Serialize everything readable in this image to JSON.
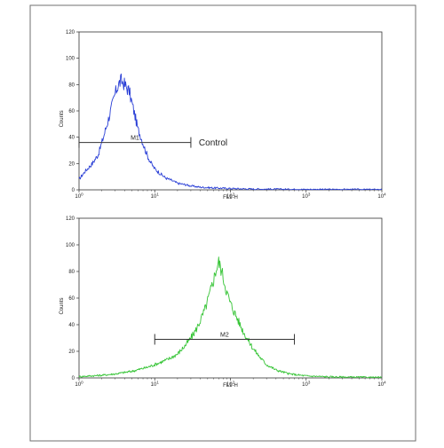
{
  "chart_data": [
    {
      "type": "line",
      "title": "",
      "xlabel": "FL1-H",
      "ylabel": "Counts",
      "x_scale": "log",
      "xlim": [
        1,
        10000
      ],
      "ylim": [
        0,
        120
      ],
      "y_ticks": [
        "0",
        "20",
        "40",
        "60",
        "80",
        "100",
        "120"
      ],
      "x_ticks": [
        {
          "base": "10",
          "exp": "0"
        },
        {
          "base": "10",
          "exp": "1"
        },
        {
          "base": "10",
          "exp": "2"
        },
        {
          "base": "10",
          "exp": "3"
        },
        {
          "base": "10",
          "exp": "4"
        }
      ],
      "color": "#2a3fd6",
      "series": [
        {
          "x": [
            1,
            1.2,
            1.5,
            1.8,
            2.1,
            2.4,
            2.7,
            3.0,
            3.3,
            3.6,
            3.9,
            4.2,
            4.6,
            5.0,
            5.5,
            6.0,
            6.6,
            7.2,
            8.0,
            9.0,
            10,
            12,
            14,
            17,
            20,
            25,
            30,
            40,
            60,
            100,
            200,
            1000,
            10000
          ],
          "y": [
            8,
            14,
            20,
            27,
            40,
            52,
            63,
            73,
            80,
            83,
            81,
            78,
            75,
            66,
            56,
            46,
            40,
            33,
            26,
            20,
            16,
            12,
            9,
            7,
            5,
            4,
            3,
            2,
            1.5,
            1,
            0.6,
            0.3,
            0.2
          ]
        }
      ],
      "gate": {
        "label": "M1",
        "x_start": 1,
        "x_end": 30,
        "y": 36
      },
      "annotation": "Control"
    },
    {
      "type": "line",
      "title": "",
      "xlabel": "FL1-H",
      "ylabel": "Counts",
      "x_scale": "log",
      "xlim": [
        1,
        10000
      ],
      "ylim": [
        0,
        120
      ],
      "y_ticks": [
        "0",
        "20",
        "40",
        "60",
        "80",
        "100",
        "120"
      ],
      "x_ticks": [
        {
          "base": "10",
          "exp": "0"
        },
        {
          "base": "10",
          "exp": "1"
        },
        {
          "base": "10",
          "exp": "2"
        },
        {
          "base": "10",
          "exp": "3"
        },
        {
          "base": "10",
          "exp": "4"
        }
      ],
      "color": "#35c435",
      "series": [
        {
          "x": [
            1,
            2,
            3,
            5,
            8,
            10,
            15,
            20,
            25,
            30,
            35,
            40,
            45,
            50,
            55,
            60,
            65,
            70,
            75,
            80,
            90,
            100,
            120,
            150,
            200,
            250,
            300,
            400,
            600,
            1000,
            2000,
            10000
          ],
          "y": [
            1,
            2,
            3,
            5,
            8,
            10,
            14,
            18,
            24,
            30,
            36,
            43,
            50,
            58,
            66,
            74,
            82,
            87,
            82,
            76,
            64,
            56,
            46,
            34,
            22,
            15,
            10,
            6,
            3,
            1.5,
            0.8,
            0.3
          ]
        }
      ],
      "gate": {
        "label": "M2",
        "x_start": 10,
        "x_end": 700,
        "y": 29
      }
    }
  ]
}
